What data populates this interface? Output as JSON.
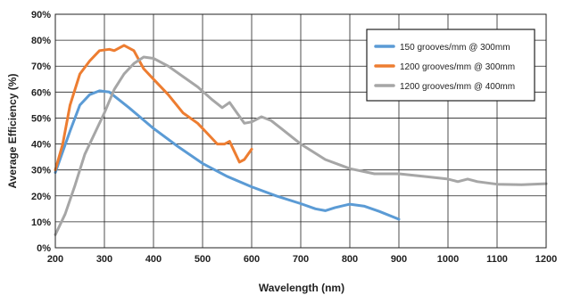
{
  "chart_data": {
    "type": "line",
    "title": "",
    "xlabel": "Wavelength (nm)",
    "ylabel": "Average Efficiency (%)",
    "xlim": [
      200,
      1200
    ],
    "ylim": [
      0,
      90
    ],
    "x_ticks": [
      200,
      300,
      400,
      500,
      600,
      700,
      800,
      900,
      1000,
      1100,
      1200
    ],
    "x_tick_labels": [
      "200",
      "300",
      "400",
      "500",
      "600",
      "700",
      "800",
      "900",
      "1000",
      "1100",
      "1200"
    ],
    "y_ticks": [
      0,
      10,
      20,
      30,
      40,
      50,
      60,
      70,
      80,
      90
    ],
    "y_tick_labels": [
      "0%",
      "10%",
      "20%",
      "30%",
      "40%",
      "50%",
      "60%",
      "70%",
      "80%",
      "90%"
    ],
    "grid": true,
    "legend_position": "top-right",
    "series": [
      {
        "name": "150 grooves/mm @ 300mm",
        "color": "#5b9bd5",
        "points": [
          [
            200,
            29
          ],
          [
            230,
            45
          ],
          [
            250,
            55
          ],
          [
            270,
            59
          ],
          [
            290,
            60.5
          ],
          [
            310,
            60
          ],
          [
            330,
            57
          ],
          [
            350,
            54
          ],
          [
            400,
            46
          ],
          [
            450,
            39
          ],
          [
            500,
            32.5
          ],
          [
            550,
            27.5
          ],
          [
            600,
            23.5
          ],
          [
            650,
            20
          ],
          [
            700,
            17
          ],
          [
            730,
            15
          ],
          [
            750,
            14.3
          ],
          [
            770,
            15.5
          ],
          [
            800,
            16.8
          ],
          [
            830,
            16
          ],
          [
            860,
            14
          ],
          [
            900,
            11
          ]
        ]
      },
      {
        "name": "1200 grooves/mm @ 300mm",
        "color": "#ed7d31",
        "points": [
          [
            200,
            30
          ],
          [
            215,
            40
          ],
          [
            230,
            55
          ],
          [
            250,
            67
          ],
          [
            270,
            72
          ],
          [
            290,
            76
          ],
          [
            310,
            76.5
          ],
          [
            320,
            76
          ],
          [
            340,
            78
          ],
          [
            360,
            76
          ],
          [
            380,
            69
          ],
          [
            400,
            65
          ],
          [
            430,
            59
          ],
          [
            460,
            52
          ],
          [
            490,
            48
          ],
          [
            510,
            44
          ],
          [
            530,
            40
          ],
          [
            545,
            40
          ],
          [
            555,
            41
          ],
          [
            565,
            37
          ],
          [
            575,
            33
          ],
          [
            585,
            34
          ],
          [
            600,
            38
          ]
        ]
      },
      {
        "name": "1200 grooves/mm @ 400mm",
        "color": "#a6a6a6",
        "points": [
          [
            200,
            5
          ],
          [
            220,
            13
          ],
          [
            240,
            24
          ],
          [
            260,
            36
          ],
          [
            280,
            44
          ],
          [
            300,
            52
          ],
          [
            320,
            61
          ],
          [
            340,
            67
          ],
          [
            360,
            71
          ],
          [
            380,
            73.5
          ],
          [
            400,
            73
          ],
          [
            430,
            70
          ],
          [
            460,
            66
          ],
          [
            490,
            62
          ],
          [
            520,
            57
          ],
          [
            540,
            54
          ],
          [
            555,
            56
          ],
          [
            570,
            52
          ],
          [
            585,
            48
          ],
          [
            600,
            48.5
          ],
          [
            620,
            50.5
          ],
          [
            640,
            49
          ],
          [
            660,
            46
          ],
          [
            700,
            40
          ],
          [
            750,
            34
          ],
          [
            800,
            30.5
          ],
          [
            850,
            28.5
          ],
          [
            900,
            28.5
          ],
          [
            950,
            27.5
          ],
          [
            1000,
            26.5
          ],
          [
            1020,
            25.5
          ],
          [
            1040,
            26.5
          ],
          [
            1060,
            25.5
          ],
          [
            1100,
            24.5
          ],
          [
            1150,
            24.3
          ],
          [
            1200,
            24.7
          ]
        ]
      }
    ]
  }
}
